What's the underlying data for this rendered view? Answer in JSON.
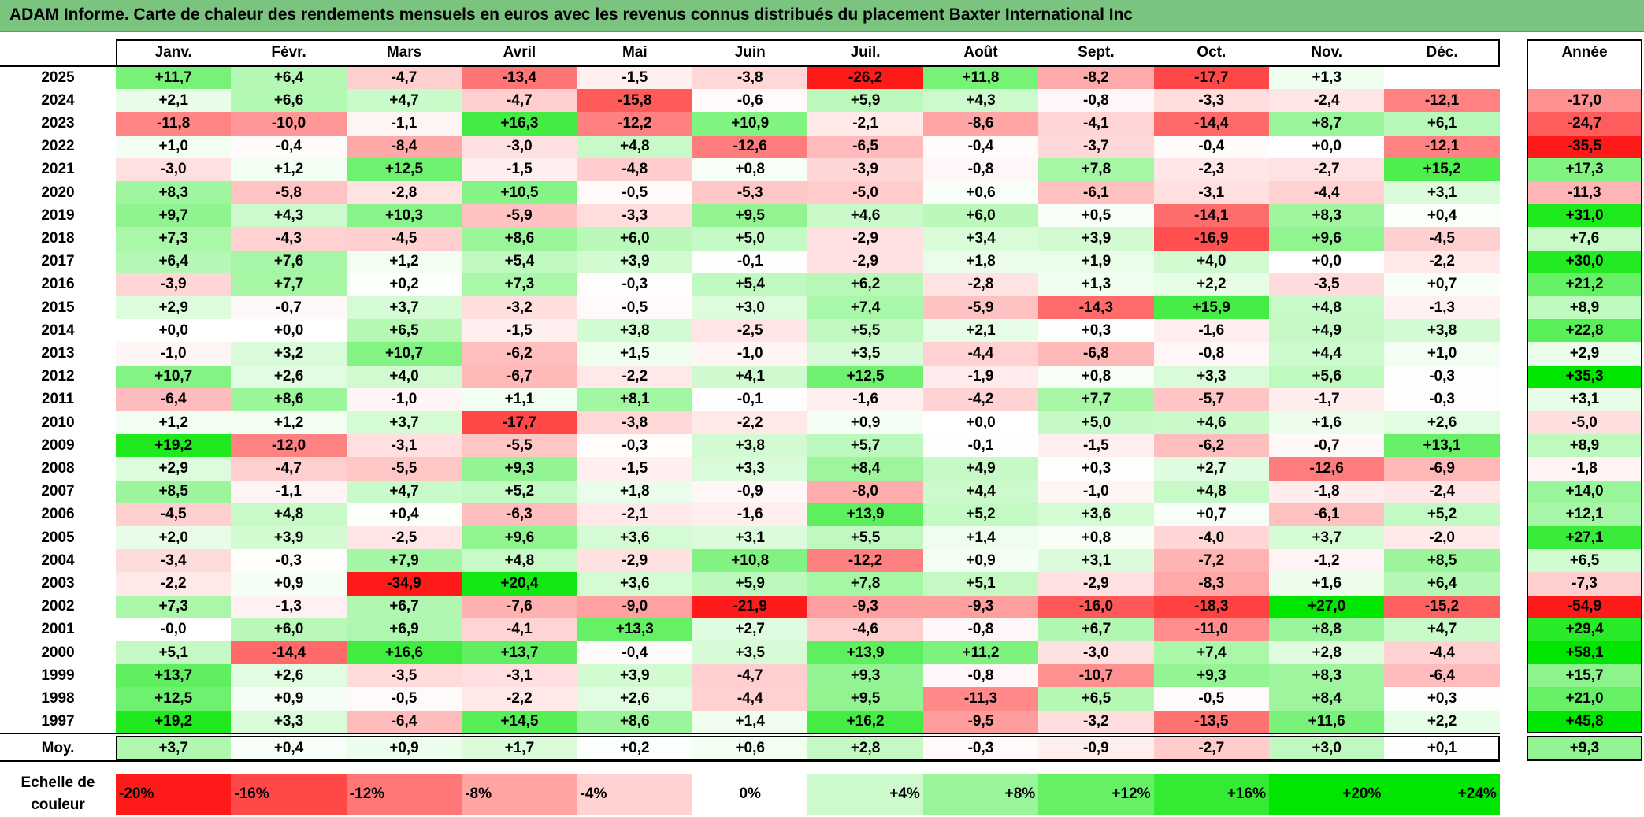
{
  "title": "ADAM Informe. Carte de chaleur des rendements mensuels en euros avec les revenus connus distribués du placement Baxter International Inc",
  "colors": {
    "title_bg": "#7bc47f",
    "neg_max": "#ff1a1a",
    "neutral": "#ffffff",
    "pos_max": "#00e600"
  },
  "chart_data": {
    "type": "heatmap",
    "title": "ADAM Informe. Carte de chaleur des rendements mensuels en euros avec les revenus connus distribués du placement Baxter International Inc",
    "months": [
      "Janv.",
      "Févr.",
      "Mars",
      "Avril",
      "Mai",
      "Juin",
      "Juil.",
      "Août",
      "Sept.",
      "Oct.",
      "Nov.",
      "Déc."
    ],
    "year_header": "Année",
    "avg_label": "Moy.",
    "rows": [
      {
        "year": "2025",
        "values": [
          "+11,7",
          "+6,4",
          "-4,7",
          "-13,4",
          "-1,5",
          "-3,8",
          "-26,2",
          "+11,8",
          "-8,2",
          "-17,7",
          "+1,3",
          ""
        ],
        "annual": ""
      },
      {
        "year": "2024",
        "values": [
          "+2,1",
          "+6,6",
          "+4,7",
          "-4,7",
          "-15,8",
          "-0,6",
          "+5,9",
          "+4,3",
          "-0,8",
          "-3,3",
          "-2,4",
          "-12,1"
        ],
        "annual": "-17,0"
      },
      {
        "year": "2023",
        "values": [
          "-11,8",
          "-10,0",
          "-1,1",
          "+16,3",
          "-12,2",
          "+10,9",
          "-2,1",
          "-8,6",
          "-4,1",
          "-14,4",
          "+8,7",
          "+6,1"
        ],
        "annual": "-24,7"
      },
      {
        "year": "2022",
        "values": [
          "+1,0",
          "-0,4",
          "-8,4",
          "-3,0",
          "+4,8",
          "-12,6",
          "-6,5",
          "-0,4",
          "-3,7",
          "-0,4",
          "+0,0",
          "-12,1"
        ],
        "annual": "-35,5"
      },
      {
        "year": "2021",
        "values": [
          "-3,0",
          "+1,2",
          "+12,5",
          "-1,5",
          "-4,8",
          "+0,8",
          "-3,9",
          "-0,8",
          "+7,8",
          "-2,3",
          "-2,7",
          "+15,2"
        ],
        "annual": "+17,3"
      },
      {
        "year": "2020",
        "values": [
          "+8,3",
          "-5,8",
          "-2,8",
          "+10,5",
          "-0,5",
          "-5,3",
          "-5,0",
          "+0,6",
          "-6,1",
          "-3,1",
          "-4,4",
          "+3,1"
        ],
        "annual": "-11,3"
      },
      {
        "year": "2019",
        "values": [
          "+9,7",
          "+4,3",
          "+10,3",
          "-5,9",
          "-3,3",
          "+9,5",
          "+4,6",
          "+6,0",
          "+0,5",
          "-14,1",
          "+8,3",
          "+0,4"
        ],
        "annual": "+31,0"
      },
      {
        "year": "2018",
        "values": [
          "+7,3",
          "-4,3",
          "-4,5",
          "+8,6",
          "+6,0",
          "+5,0",
          "-2,9",
          "+3,4",
          "+3,9",
          "-16,9",
          "+9,6",
          "-4,5"
        ],
        "annual": "+7,6"
      },
      {
        "year": "2017",
        "values": [
          "+6,4",
          "+7,6",
          "+1,2",
          "+5,4",
          "+3,9",
          "-0,1",
          "-2,9",
          "+1,8",
          "+1,9",
          "+4,0",
          "+0,0",
          "-2,2"
        ],
        "annual": "+30,0"
      },
      {
        "year": "2016",
        "values": [
          "-3,9",
          "+7,7",
          "+0,2",
          "+7,3",
          "-0,3",
          "+5,4",
          "+6,2",
          "-2,8",
          "+1,3",
          "+2,2",
          "-3,5",
          "+0,7"
        ],
        "annual": "+21,2"
      },
      {
        "year": "2015",
        "values": [
          "+2,9",
          "-0,7",
          "+3,7",
          "-3,2",
          "-0,5",
          "+3,0",
          "+7,4",
          "-5,9",
          "-14,3",
          "+15,9",
          "+4,8",
          "-1,3"
        ],
        "annual": "+8,9"
      },
      {
        "year": "2014",
        "values": [
          "+0,0",
          "+0,0",
          "+6,5",
          "-1,5",
          "+3,8",
          "-2,5",
          "+5,5",
          "+2,1",
          "+0,3",
          "-1,6",
          "+4,9",
          "+3,8"
        ],
        "annual": "+22,8"
      },
      {
        "year": "2013",
        "values": [
          "-1,0",
          "+3,2",
          "+10,7",
          "-6,2",
          "+1,5",
          "-1,0",
          "+3,5",
          "-4,4",
          "-6,8",
          "-0,8",
          "+4,4",
          "+1,0"
        ],
        "annual": "+2,9"
      },
      {
        "year": "2012",
        "values": [
          "+10,7",
          "+2,6",
          "+4,0",
          "-6,7",
          "-2,2",
          "+4,1",
          "+12,5",
          "-1,9",
          "+0,8",
          "+3,3",
          "+5,6",
          "-0,3"
        ],
        "annual": "+35,3"
      },
      {
        "year": "2011",
        "values": [
          "-6,4",
          "+8,6",
          "-1,0",
          "+1,1",
          "+8,1",
          "-0,1",
          "-1,6",
          "-4,2",
          "+7,7",
          "-5,7",
          "-1,7",
          "-0,3"
        ],
        "annual": "+3,1"
      },
      {
        "year": "2010",
        "values": [
          "+1,2",
          "+1,2",
          "+3,7",
          "-17,7",
          "-3,8",
          "-2,2",
          "+0,9",
          "+0,0",
          "+5,0",
          "+4,6",
          "+1,6",
          "+2,6"
        ],
        "annual": "-5,0"
      },
      {
        "year": "2009",
        "values": [
          "+19,2",
          "-12,0",
          "-3,1",
          "-5,5",
          "-0,3",
          "+3,8",
          "+5,7",
          "-0,1",
          "-1,5",
          "-6,2",
          "-0,7",
          "+13,1"
        ],
        "annual": "+8,9"
      },
      {
        "year": "2008",
        "values": [
          "+2,9",
          "-4,7",
          "-5,5",
          "+9,3",
          "-1,5",
          "+3,3",
          "+8,4",
          "+4,9",
          "+0,3",
          "+2,7",
          "-12,6",
          "-6,9"
        ],
        "annual": "-1,8"
      },
      {
        "year": "2007",
        "values": [
          "+8,5",
          "-1,1",
          "+4,7",
          "+5,2",
          "+1,8",
          "-0,9",
          "-8,0",
          "+4,4",
          "-1,0",
          "+4,8",
          "-1,8",
          "-2,4"
        ],
        "annual": "+14,0"
      },
      {
        "year": "2006",
        "values": [
          "-4,5",
          "+4,8",
          "+0,4",
          "-6,3",
          "-2,1",
          "-1,6",
          "+13,9",
          "+5,2",
          "+3,6",
          "+0,7",
          "-6,1",
          "+5,2"
        ],
        "annual": "+12,1"
      },
      {
        "year": "2005",
        "values": [
          "+2,0",
          "+3,9",
          "-2,5",
          "+9,6",
          "+3,6",
          "+3,1",
          "+5,5",
          "+1,4",
          "+0,8",
          "-4,0",
          "+3,7",
          "-2,0"
        ],
        "annual": "+27,1"
      },
      {
        "year": "2004",
        "values": [
          "-3,4",
          "-0,3",
          "+7,9",
          "+4,8",
          "-2,9",
          "+10,8",
          "-12,2",
          "+0,9",
          "+3,1",
          "-7,2",
          "-1,2",
          "+8,5"
        ],
        "annual": "+6,5"
      },
      {
        "year": "2003",
        "values": [
          "-2,2",
          "+0,9",
          "-34,9",
          "+20,4",
          "+3,6",
          "+5,9",
          "+7,8",
          "+5,1",
          "-2,9",
          "-8,3",
          "+1,6",
          "+6,4"
        ],
        "annual": "-7,3"
      },
      {
        "year": "2002",
        "values": [
          "+7,3",
          "-1,3",
          "+6,7",
          "-7,6",
          "-9,0",
          "-21,9",
          "-9,3",
          "-9,3",
          "-16,0",
          "-18,3",
          "+27,0",
          "-15,2"
        ],
        "annual": "-54,9"
      },
      {
        "year": "2001",
        "values": [
          "-0,0",
          "+6,0",
          "+6,9",
          "-4,1",
          "+13,3",
          "+2,7",
          "-4,6",
          "-0,8",
          "+6,7",
          "-11,0",
          "+8,8",
          "+4,7"
        ],
        "annual": "+29,4"
      },
      {
        "year": "2000",
        "values": [
          "+5,1",
          "-14,4",
          "+16,6",
          "+13,7",
          "-0,4",
          "+3,5",
          "+13,9",
          "+11,2",
          "-3,0",
          "+7,4",
          "+2,8",
          "-4,4"
        ],
        "annual": "+58,1"
      },
      {
        "year": "1999",
        "values": [
          "+13,7",
          "+2,6",
          "-3,5",
          "-3,1",
          "+3,9",
          "-4,7",
          "+9,3",
          "-0,8",
          "-10,7",
          "+9,3",
          "+8,3",
          "-6,4"
        ],
        "annual": "+15,7"
      },
      {
        "year": "1998",
        "values": [
          "+12,5",
          "+0,9",
          "-0,5",
          "-2,2",
          "+2,6",
          "-4,4",
          "+9,5",
          "-11,3",
          "+6,5",
          "-0,5",
          "+8,4",
          "+0,3"
        ],
        "annual": "+21,0"
      },
      {
        "year": "1997",
        "values": [
          "+19,2",
          "+3,3",
          "-6,4",
          "+14,5",
          "+8,6",
          "+1,4",
          "+16,2",
          "-9,5",
          "-3,2",
          "-13,5",
          "+11,6",
          "+2,2"
        ],
        "annual": "+45,8"
      }
    ],
    "average": {
      "values": [
        "+3,7",
        "+0,4",
        "+0,9",
        "+1,7",
        "+0,2",
        "+0,6",
        "+2,8",
        "-0,3",
        "-0,9",
        "-2,7",
        "+3,0",
        "+0,1"
      ],
      "annual": "+9,3"
    },
    "scale": {
      "label_line1": "Echelle de",
      "label_line2": "couleur",
      "steps": [
        "-20%",
        "-16%",
        "-12%",
        "-8%",
        "-4%",
        "0%",
        "+4%",
        "+8%",
        "+12%",
        "+16%",
        "+20%",
        "+24%"
      ]
    }
  }
}
